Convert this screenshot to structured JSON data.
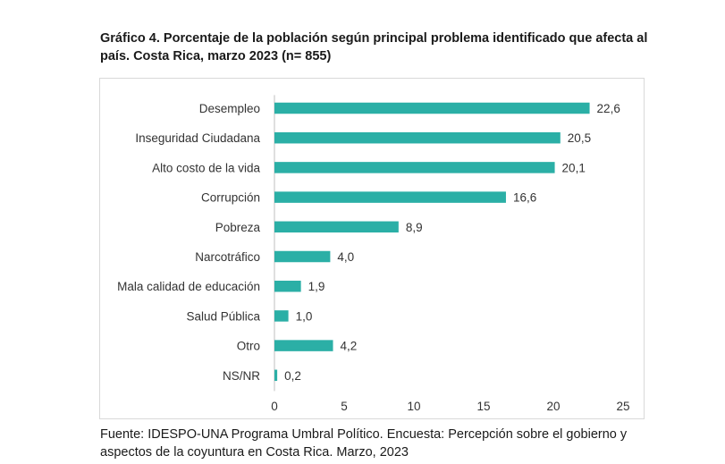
{
  "title": "Gráfico 4. Porcentaje de la población según principal problema identificado que afecta al país. Costa Rica, marzo 2023 (n= 855)",
  "source": "Fuente: IDESPO-UNA Programa Umbral Político. Encuesta: Percepción sobre el gobierno y aspectos de la coyuntura en Costa Rica. Marzo, 2023",
  "chart_data": {
    "type": "bar",
    "orientation": "horizontal",
    "categories": [
      "Desempleo",
      "Inseguridad Ciudadana",
      "Alto costo de la vida",
      "Corrupción",
      "Pobreza",
      "Narcotráfico",
      "Mala calidad de educación",
      "Salud Pública",
      "Otro",
      "NS/NR"
    ],
    "values": [
      22.6,
      20.5,
      20.1,
      16.6,
      8.9,
      4.0,
      1.9,
      1.0,
      4.2,
      0.2
    ],
    "value_labels": [
      "22,6",
      "20,5",
      "20,1",
      "16,6",
      "8,9",
      "4,0",
      "1,9",
      "1,0",
      "4,2",
      "0,2"
    ],
    "xlim": [
      0,
      25
    ],
    "xticks": [
      0,
      5,
      10,
      15,
      20,
      25
    ],
    "xtick_labels": [
      "0",
      "5",
      "10",
      "15",
      "20",
      "25"
    ],
    "grid": false,
    "legend": "none",
    "bar_color": "#2BAFA6"
  }
}
